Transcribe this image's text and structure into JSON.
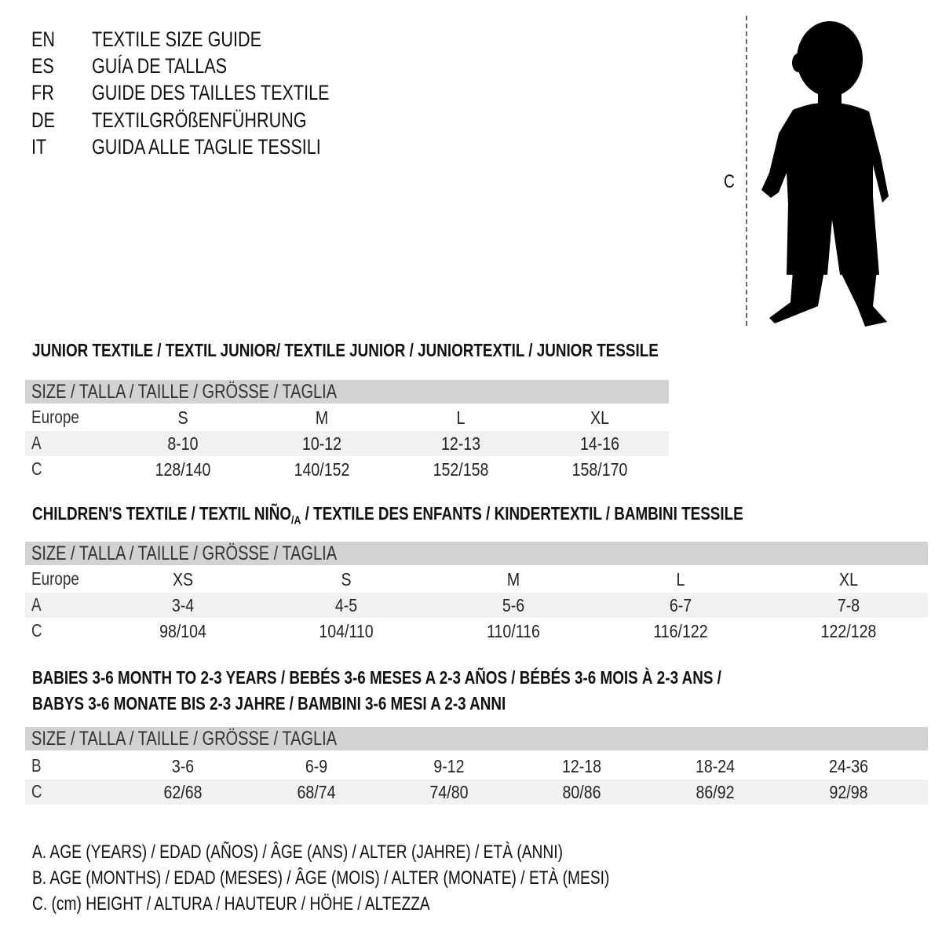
{
  "titles": [
    {
      "lang": "EN",
      "text": "TEXTILE SIZE GUIDE"
    },
    {
      "lang": "ES",
      "text": "GUÍA DE TALLAS"
    },
    {
      "lang": "FR",
      "text": "GUIDE DES TAILLES TEXTILE"
    },
    {
      "lang": "DE",
      "text": "TEXTILGRÖßENFÜHRUNG"
    },
    {
      "lang": "IT",
      "text": "GUIDA ALLE TAGLIE TESSILI"
    }
  ],
  "figure": {
    "measure_label": "C"
  },
  "junior": {
    "heading": "JUNIOR TEXTILE / TEXTIL JUNIOR/ TEXTILE JUNIOR / JUNIORTEXTIL / JUNIOR TESSILE",
    "header": "SIZE / TALLA / TAILLE / GRÖSSE / TAGLIA",
    "rows": [
      {
        "label": "Europe",
        "cells": [
          "S",
          "M",
          "L",
          "XL"
        ]
      },
      {
        "label": "A",
        "cells": [
          "8-10",
          "10-12",
          "12-13",
          "14-16"
        ]
      },
      {
        "label": "C",
        "cells": [
          "128/140",
          "140/152",
          "152/158",
          "158/170"
        ]
      }
    ]
  },
  "children": {
    "heading": "CHILDREN'S TEXTILE / TEXTIL NIÑO",
    "heading_sub": "/A",
    "heading_rest": " / TEXTILE DES ENFANTS / KINDERTEXTIL / BAMBINI TESSILE",
    "header": "SIZE / TALLA / TAILLE / GRÖSSE / TAGLIA",
    "rows": [
      {
        "label": "Europe",
        "cells": [
          "XS",
          "S",
          "M",
          "L",
          "XL"
        ]
      },
      {
        "label": "A",
        "cells": [
          "3-4",
          "4-5",
          "5-6",
          "6-7",
          "7-8"
        ]
      },
      {
        "label": "C",
        "cells": [
          "98/104",
          "104/110",
          "110/116",
          "116/122",
          "122/128"
        ]
      }
    ]
  },
  "babies": {
    "heading_1": "BABIES 3-6 MONTH TO 2-3 YEARS / BEBÉS 3-6 MESES A 2-3 AÑOS / BÉBÉS 3-6 MOIS À 2-3 ANS /",
    "heading_2": "BABYS 3-6 MONATE BIS 2-3 JAHRE / BAMBINI 3-6 MESI A 2-3 ANNI",
    "header": "SIZE / TALLA / TAILLE / GRÖSSE / TAGLIA",
    "rows": [
      {
        "label": "B",
        "cells": [
          "3-6",
          "6-9",
          "9-12",
          "12-18",
          "18-24",
          "24-36"
        ]
      },
      {
        "label": "C",
        "cells": [
          "62/68",
          "68/74",
          "74/80",
          "80/86",
          "86/92",
          "92/98"
        ]
      }
    ]
  },
  "legend": [
    "A. AGE (YEARS) / EDAD (AÑOS) / ÂGE (ANS) / ALTER (JAHRE) / ETÀ (ANNI)",
    "B. AGE (MONTHS) / EDAD (MESES) / ÂGE (MOIS) / ALTER (MONATE) / ETÀ (MESI)",
    "C. (cm) HEIGHT / ALTURA / HAUTEUR / HÖHE / ALTEZZA"
  ]
}
